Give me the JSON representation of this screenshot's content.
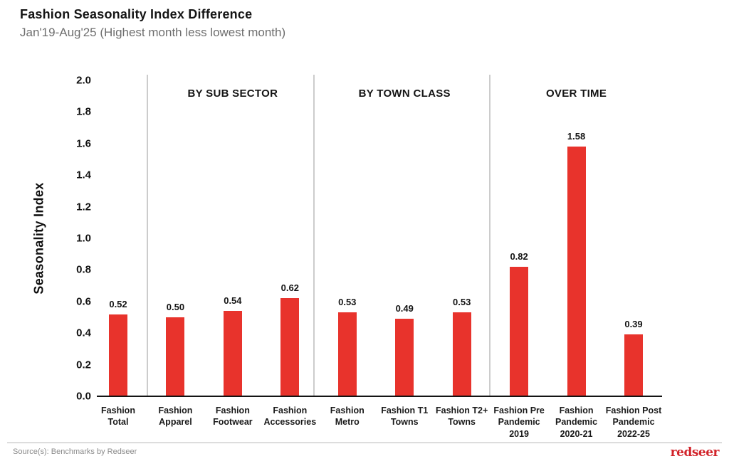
{
  "header": {
    "title": "Fashion Seasonality Index Difference",
    "subtitle": "Jan'19-Aug'25 (Highest month less lowest month)"
  },
  "chart_data": {
    "type": "bar",
    "title": "Fashion Seasonality Index Difference",
    "subtitle": "Jan'19-Aug'25 (Highest month less lowest month)",
    "ylabel": "Seasonality Index",
    "xlabel": "",
    "ylim": [
      0,
      2.0
    ],
    "ytick_labels": [
      "0.0",
      "0.2",
      "0.4",
      "0.6",
      "0.8",
      "1.0",
      "1.2",
      "1.4",
      "1.6",
      "1.8",
      "2.0"
    ],
    "grid": false,
    "legend": "none",
    "bar_color": "#E8332C",
    "sections": [
      {
        "heading": "",
        "bars": [
          {
            "label": "Fashion\nTotal",
            "value": 0.52
          }
        ]
      },
      {
        "heading": "BY SUB SECTOR",
        "bars": [
          {
            "label": "Fashion\nApparel",
            "value": 0.5
          },
          {
            "label": "Fashion\nFootwear",
            "value": 0.54
          },
          {
            "label": "Fashion\nAccessories",
            "value": 0.62
          }
        ]
      },
      {
        "heading": "BY TOWN CLASS",
        "bars": [
          {
            "label": "Fashion\nMetro",
            "value": 0.53
          },
          {
            "label": "Fashion T1\nTowns",
            "value": 0.49
          },
          {
            "label": "Fashion T2+\nTowns",
            "value": 0.53
          }
        ]
      },
      {
        "heading": "OVER TIME",
        "bars": [
          {
            "label": "Fashion Pre\nPandemic\n2019",
            "value": 0.82
          },
          {
            "label": "Fashion\nPandemic\n2020-21",
            "value": 1.58
          },
          {
            "label": "Fashion Post\nPandemic\n2022-25",
            "value": 0.39
          }
        ]
      }
    ]
  },
  "footer": {
    "source": "Source(s): Benchmarks by Redseer",
    "logo": "redseer"
  }
}
